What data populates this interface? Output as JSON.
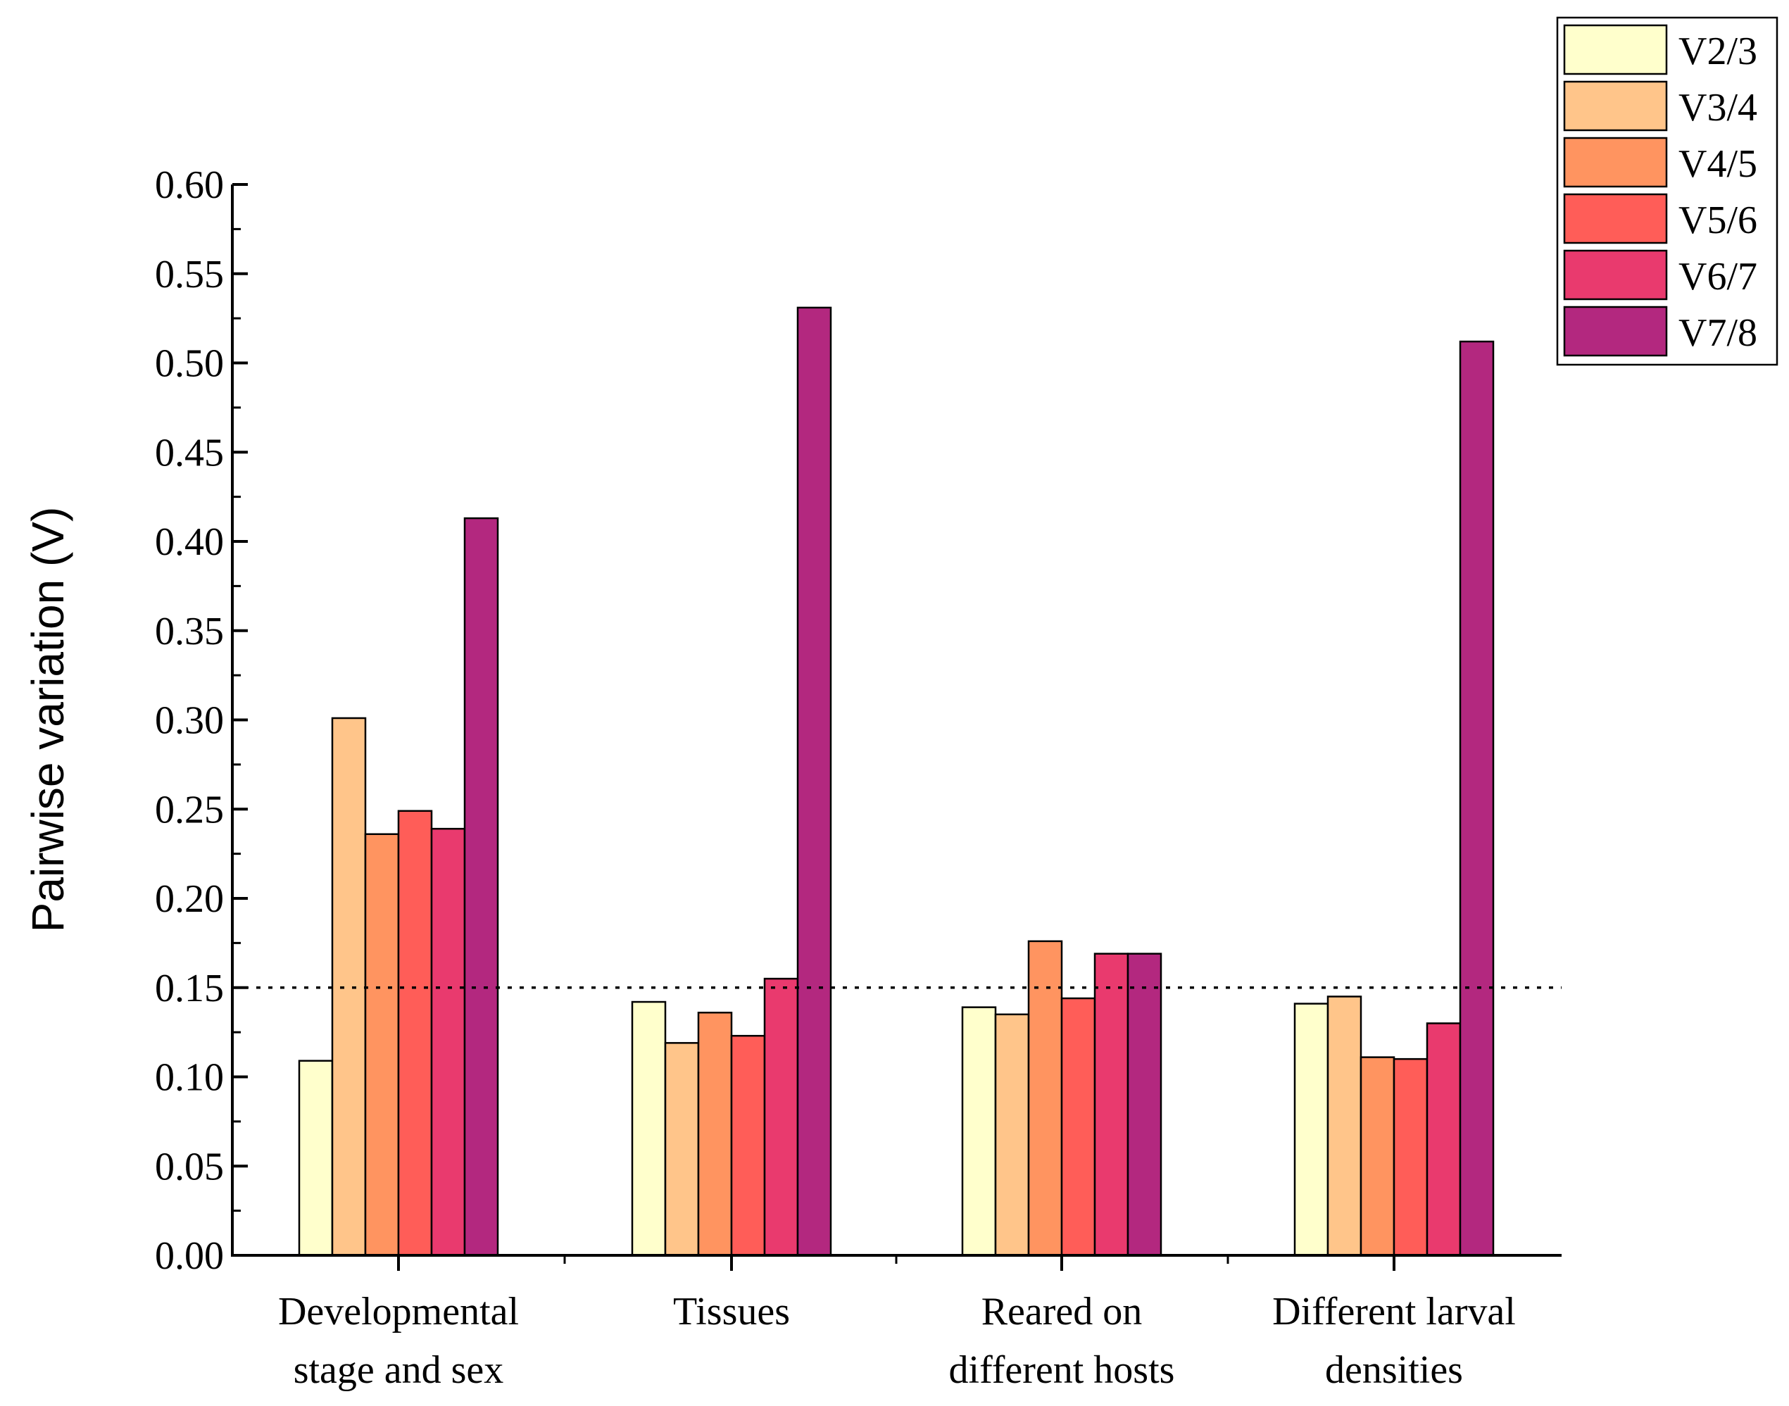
{
  "chart_data": {
    "type": "bar",
    "title": "",
    "xlabel": "",
    "ylabel": "Pairwise variation (V)",
    "ylim": [
      0,
      0.6
    ],
    "yticks": [
      "0.00",
      "0.05",
      "0.10",
      "0.15",
      "0.20",
      "0.25",
      "0.30",
      "0.35",
      "0.40",
      "0.45",
      "0.50",
      "0.55",
      "0.60"
    ],
    "threshold": 0.15,
    "categories": [
      [
        "Developmental",
        "stage and sex"
      ],
      [
        "Tissues"
      ],
      [
        "Reared on",
        "different hosts"
      ],
      [
        "Different larval",
        "densities"
      ]
    ],
    "series": [
      {
        "name": "V2/3",
        "color": "#FFFFCC",
        "values": [
          0.109,
          0.142,
          0.139,
          0.141
        ]
      },
      {
        "name": "V3/4",
        "color": "#FFC58A",
        "values": [
          0.301,
          0.119,
          0.135,
          0.145
        ]
      },
      {
        "name": "V4/5",
        "color": "#FF9460",
        "values": [
          0.236,
          0.136,
          0.176,
          0.111
        ]
      },
      {
        "name": "V5/6",
        "color": "#FF5D58",
        "values": [
          0.249,
          0.123,
          0.144,
          0.11
        ]
      },
      {
        "name": "V6/7",
        "color": "#E93A6E",
        "values": [
          0.239,
          0.155,
          0.169,
          0.13
        ]
      },
      {
        "name": "V7/8",
        "color": "#B3287F",
        "values": [
          0.413,
          0.531,
          0.169,
          0.512
        ]
      }
    ],
    "legend": "top-right"
  }
}
